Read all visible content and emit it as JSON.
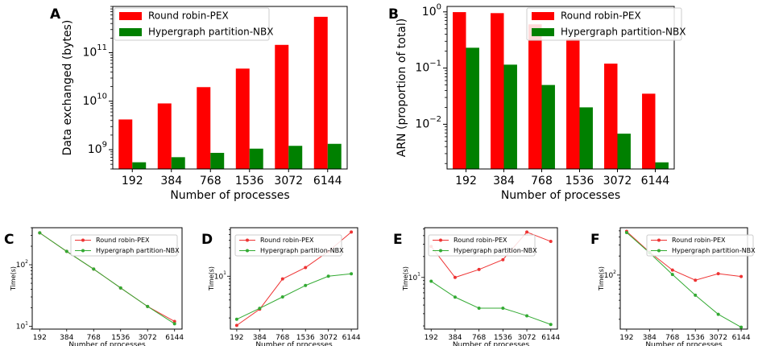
{
  "chart_data": [
    {
      "id": "A",
      "type": "bar",
      "panel_label": "A",
      "categories": [
        "192",
        "384",
        "768",
        "1536",
        "3072",
        "6144"
      ],
      "series": [
        {
          "name": "Round robin-PEX",
          "color": "#ff0000",
          "values": [
            4200000000.0,
            9000000000.0,
            19500000000.0,
            47000000000.0,
            145000000000.0,
            550000000000.0
          ]
        },
        {
          "name": "Hypergraph partition-NBX",
          "color": "#008000",
          "values": [
            550000000.0,
            700000000.0,
            860000000.0,
            1050000000.0,
            1200000000.0,
            1320000000.0
          ]
        }
      ],
      "xlabel": "Number of processes",
      "ylabel": "Data exchanged  (bytes)",
      "yscale": "log",
      "ylim": [
        400000000.0,
        900000000000.0
      ],
      "yticks": [
        {
          "value": 1000000000.0,
          "base": "10",
          "exp": "9"
        },
        {
          "value": 10000000000.0,
          "base": "10",
          "exp": "10"
        },
        {
          "value": 100000000000.0,
          "base": "10",
          "exp": "11"
        }
      ],
      "legend": "top-left"
    },
    {
      "id": "B",
      "type": "bar",
      "panel_label": "B",
      "categories": [
        "192",
        "384",
        "768",
        "1536",
        "3072",
        "6144"
      ],
      "series": [
        {
          "name": "Round robin-PEX",
          "color": "#ff0000",
          "values": [
            0.99,
            0.95,
            0.6,
            0.33,
            0.12,
            0.035
          ]
        },
        {
          "name": "Hypergraph partition-NBX",
          "color": "#008000",
          "values": [
            0.23,
            0.115,
            0.05,
            0.02,
            0.0068,
            0.0021
          ]
        }
      ],
      "xlabel": "Number of processes",
      "ylabel": "ARN (proportion of total)",
      "yscale": "log",
      "ylim": [
        0.0016,
        1.25
      ],
      "yticks": [
        {
          "value": 1,
          "base": "10",
          "exp": "0"
        },
        {
          "value": 0.1,
          "base": "10",
          "exp": "−1"
        },
        {
          "value": 0.01,
          "base": "10",
          "exp": "−2"
        }
      ],
      "legend": "top-right"
    },
    {
      "id": "C",
      "type": "line",
      "panel_label": "C",
      "x": [
        "192",
        "384",
        "768",
        "1536",
        "3072",
        "6144"
      ],
      "series": [
        {
          "name": "Round robin-PEX",
          "color": "#ee3333",
          "values": [
            330,
            165,
            85,
            42,
            21,
            12
          ]
        },
        {
          "name": "Hypergraph partition-NBX",
          "color": "#33aa33",
          "values": [
            330,
            165,
            85,
            42,
            21,
            11
          ]
        }
      ],
      "xlabel": "Number of processes",
      "ylabel": "Time(s)",
      "yscale": "log",
      "ylim": [
        9,
        400
      ],
      "yticks": [
        {
          "value": 10,
          "base": "10",
          "exp": "1"
        },
        {
          "value": 100,
          "base": "10",
          "exp": "2"
        }
      ],
      "legend": "top-right"
    },
    {
      "id": "D",
      "type": "line",
      "panel_label": "D",
      "x": [
        "192",
        "384",
        "768",
        "1536",
        "3072",
        "6144"
      ],
      "series": [
        {
          "name": "Round robin-PEX",
          "color": "#ee3333",
          "values": [
            1.5,
            2.8,
            9.0,
            14,
            26,
            55
          ]
        },
        {
          "name": "Hypergraph partition-NBX",
          "color": "#33aa33",
          "values": [
            1.9,
            2.9,
            4.5,
            7.0,
            10,
            11
          ]
        }
      ],
      "xlabel": "Number of processes",
      "ylabel": "Time(s)",
      "yscale": "log",
      "ylim": [
        1.3,
        65
      ],
      "yticks": [
        {
          "value": 10,
          "base": "10",
          "exp": "1"
        }
      ],
      "legend": "top-left"
    },
    {
      "id": "E",
      "type": "line",
      "panel_label": "E",
      "x": [
        "192",
        "384",
        "768",
        "1536",
        "3072",
        "6144"
      ],
      "series": [
        {
          "name": "Round robin-PEX",
          "color": "#ee3333",
          "values": [
            28,
            10,
            13,
            18,
            45,
            33
          ]
        },
        {
          "name": "Hypergraph partition-NBX",
          "color": "#33aa33",
          "values": [
            8.8,
            5.2,
            3.6,
            3.6,
            2.8,
            2.1
          ]
        }
      ],
      "xlabel": "Number of processes",
      "ylabel": "Time(s)",
      "yscale": "log",
      "ylim": [
        1.8,
        52
      ],
      "yticks": [
        {
          "value": 10,
          "base": "10",
          "exp": "1"
        }
      ],
      "legend": "top-left"
    },
    {
      "id": "F",
      "type": "line",
      "panel_label": "F",
      "x": [
        "192",
        "384",
        "768",
        "1536",
        "3072",
        "6144"
      ],
      "series": [
        {
          "name": "Round robin-PEX",
          "color": "#ee3333",
          "values": [
            490,
            230,
            120,
            83,
            105,
            95
          ]
        },
        {
          "name": "Hypergraph partition-NBX",
          "color": "#33aa33",
          "values": [
            470,
            225,
            102,
            48,
            24,
            15
          ]
        }
      ],
      "xlabel": "Number of processes",
      "ylabel": "Time(s)",
      "yscale": "log",
      "ylim": [
        14,
        560
      ],
      "yticks": [
        {
          "value": 100,
          "base": "10",
          "exp": "2"
        }
      ],
      "legend": "top-right"
    }
  ]
}
